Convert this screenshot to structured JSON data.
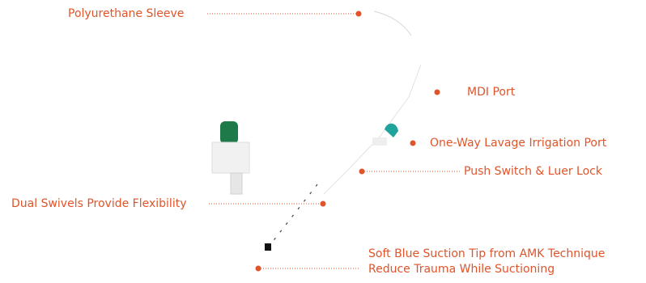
{
  "accent_color": "#e0542a",
  "device_colors": {
    "green": "#1f7a4a",
    "teal": "#1fa39a",
    "gray": "#c7c7c7",
    "black": "#111111"
  },
  "callouts": {
    "polyurethane_sleeve": "Polyurethane Sleeve",
    "mdi_port": "MDI Port",
    "lavage_port": "One-Way Lavage Irrigation Port",
    "push_switch": "Push Switch & Luer Lock",
    "dual_swivels": "Dual Swivels Provide Flexibility",
    "suction_tip_line1": "Soft Blue Suction Tip from AMK Technique",
    "suction_tip_line2": "Reduce Trauma While Suctioning"
  }
}
